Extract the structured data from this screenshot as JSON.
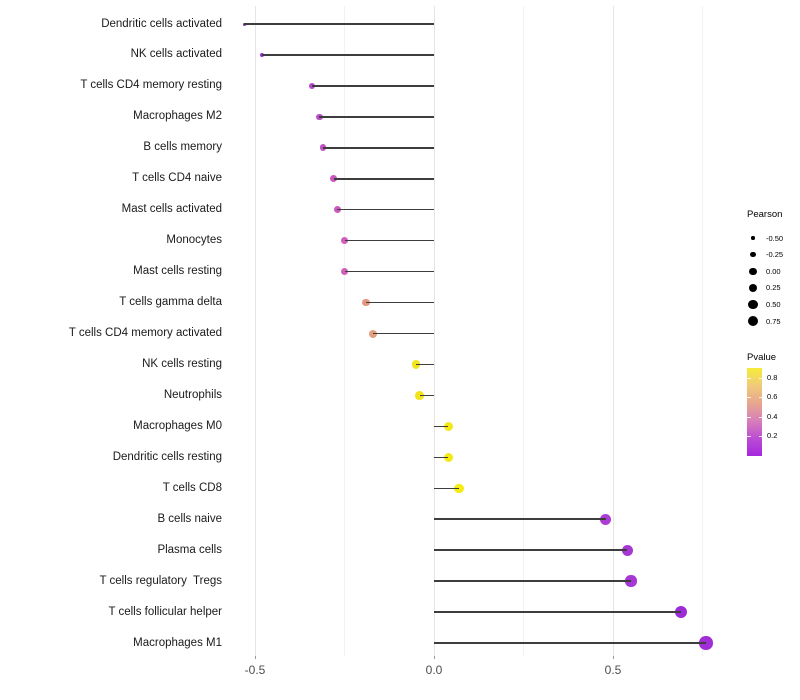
{
  "chart_data": {
    "type": "lollipop",
    "title": "",
    "xlabel": "",
    "ylabel": "",
    "grid": "vertical-only",
    "background": "#FFFFFF",
    "stem_color": "#3D3D3D",
    "x_axis": {
      "xlim": [
        -0.6,
        0.82
      ],
      "major_ticks": [
        {
          "value": -0.5,
          "label": "-0.5"
        },
        {
          "value": 0.0,
          "label": "0.0"
        },
        {
          "value": 0.5,
          "label": "0.5"
        }
      ],
      "minor_ticks": [
        -0.25,
        0.25,
        0.75
      ]
    },
    "points": [
      {
        "label": "Dendritic cells activated",
        "pearson": -0.53,
        "color": "#8A24C0",
        "size": 3.0
      },
      {
        "label": "NK cells activated",
        "pearson": -0.48,
        "color": "#9930D2",
        "size": 4.5
      },
      {
        "label": "T cells CD4 memory resting",
        "pearson": -0.34,
        "color": "#B546CE",
        "size": 6.3
      },
      {
        "label": "Macrophages M2",
        "pearson": -0.32,
        "color": "#BC4DC9",
        "size": 6.7
      },
      {
        "label": "B cells memory",
        "pearson": -0.31,
        "color": "#C152C5",
        "size": 6.7
      },
      {
        "label": "T cells CD4 naive",
        "pearson": -0.28,
        "color": "#C957C0",
        "size": 7.0
      },
      {
        "label": "Mast cells activated",
        "pearson": -0.27,
        "color": "#CC5ABE",
        "size": 7.0
      },
      {
        "label": "Monocytes",
        "pearson": -0.25,
        "color": "#D05EBC",
        "size": 7.3
      },
      {
        "label": "Mast cells resting",
        "pearson": -0.25,
        "color": "#D160BA",
        "size": 7.3
      },
      {
        "label": "T cells gamma delta",
        "pearson": -0.19,
        "color": "#E29781",
        "size": 7.7
      },
      {
        "label": "T cells CD4 memory activated",
        "pearson": -0.17,
        "color": "#E49F80",
        "size": 8.0
      },
      {
        "label": "NK cells resting",
        "pearson": -0.05,
        "color": "#F0E51E",
        "size": 8.7
      },
      {
        "label": "Neutrophils",
        "pearson": -0.04,
        "color": "#F1E41C",
        "size": 8.7
      },
      {
        "label": "Macrophages M0",
        "pearson": 0.04,
        "color": "#F3E918",
        "size": 9.0
      },
      {
        "label": "Dendritic cells resting",
        "pearson": 0.04,
        "color": "#F3EA16",
        "size": 9.0
      },
      {
        "label": "T cells CD8",
        "pearson": 0.07,
        "color": "#F4EC12",
        "size": 9.3
      },
      {
        "label": "B cells naive",
        "pearson": 0.48,
        "color": "#AB3DD2",
        "size": 11.0
      },
      {
        "label": "Plasma cells",
        "pearson": 0.54,
        "color": "#A637D5",
        "size": 11.3
      },
      {
        "label": "T cells regulatory  Tregs",
        "pearson": 0.55,
        "color": "#A537D5",
        "size": 11.3
      },
      {
        "label": "T cells follicular helper",
        "pearson": 0.69,
        "color": "#9C2BD8",
        "size": 12.3
      },
      {
        "label": "Macrophages M1",
        "pearson": 0.76,
        "color": "#A12DD7",
        "size": 13.3
      }
    ],
    "legend_pearson": {
      "title": "Pearson",
      "dot_color": "#000000",
      "entries": [
        {
          "label": "-0.50",
          "size": 3.4
        },
        {
          "label": "-0.25",
          "size": 5.4
        },
        {
          "label": "0.00",
          "size": 7.2
        },
        {
          "label": "0.25",
          "size": 8.4
        },
        {
          "label": "0.50",
          "size": 9.6
        },
        {
          "label": "0.75",
          "size": 10.6
        }
      ]
    },
    "legend_pvalue": {
      "title": "Pvalue",
      "range": [
        0.0,
        0.9
      ],
      "tick_values": [
        0.8,
        0.6,
        0.4,
        0.2
      ],
      "tick_labels": [
        "0.8",
        "0.6",
        "0.4",
        "0.2"
      ],
      "gradient_top_to_bottom": [
        "#F6EC3A",
        "#F0CA7A",
        "#E7A68F",
        "#D77FB9",
        "#BC4DD3",
        "#A527DE"
      ]
    }
  }
}
